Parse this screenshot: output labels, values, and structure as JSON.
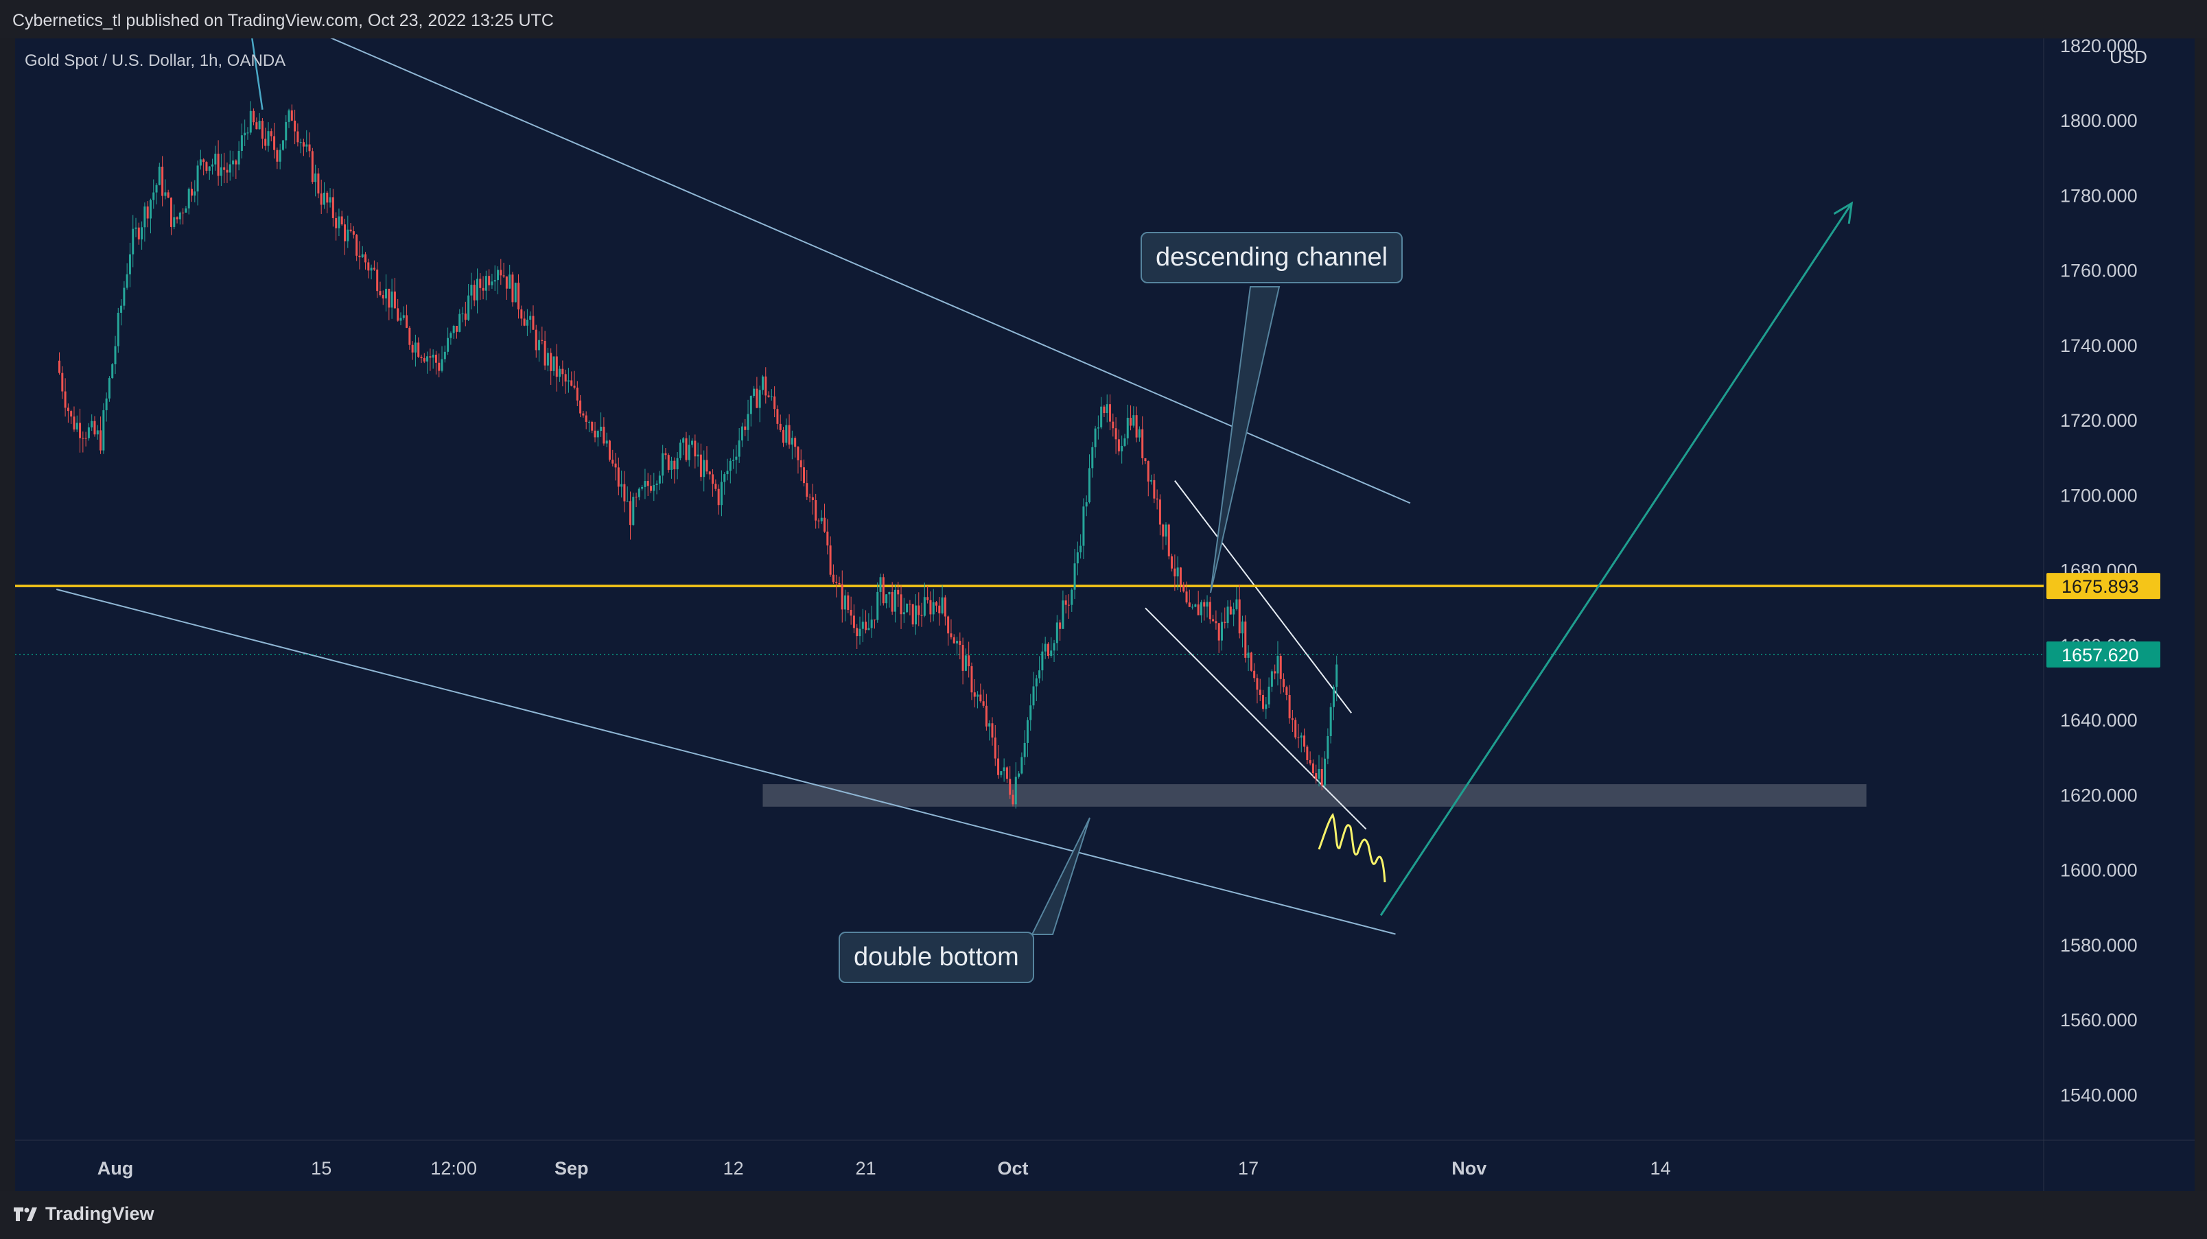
{
  "header": {
    "published": "Cybernetics_tl published on TradingView.com, Oct 23, 2022 13:25 UTC"
  },
  "footer": {
    "brand": "TradingView"
  },
  "chart": {
    "symbol_label": "Gold Spot / U.S. Dollar, 1h, OANDA",
    "currency": "USD",
    "colors": {
      "background": "#0f1a33",
      "up": "#26a69a",
      "down": "#ef5350",
      "horizontal_line": "#f5c518",
      "current_price": "#089981",
      "projection_arrow": "#1f9e8f",
      "channel_lines": "#8fb6d4",
      "support_zone": "#5d6575",
      "scribble": "#f7f26a"
    },
    "annotations": {
      "descending_channel": "descending channel",
      "double_bottom": "double bottom"
    }
  },
  "chart_data": {
    "type": "candlestick",
    "title": "Gold Spot / U.S. Dollar, 1h, OANDA",
    "ylabel": "USD",
    "ylim": [
      1528,
      1822
    ],
    "y_ticks": [
      1820,
      1800,
      1780,
      1760,
      1740,
      1720,
      1700,
      1680,
      1660,
      1640,
      1620,
      1600,
      1580,
      1560,
      1540
    ],
    "y_tick_labels": [
      "1820.000",
      "1800.000",
      "1780.000",
      "1760.000",
      "1740.000",
      "1720.000",
      "1700.000",
      "1680.000",
      "1660.000",
      "1640.000",
      "1620.000",
      "1600.000",
      "1580.000",
      "1560.000",
      "1540.000"
    ],
    "x_ticks": [
      "Aug",
      "15",
      "12:00",
      "Sep",
      "12",
      "21",
      "Oct",
      "17",
      "Nov",
      "14"
    ],
    "x_ticks_bold": [
      "Aug",
      "Sep",
      "Oct",
      "Nov"
    ],
    "price_path": [
      {
        "date": "2022-07-28",
        "price": 1736
      },
      {
        "date": "2022-07-29",
        "price": 1720
      },
      {
        "date": "2022-07-31",
        "price": 1715
      },
      {
        "date": "2022-08-02",
        "price": 1766
      },
      {
        "date": "2022-08-04",
        "price": 1785
      },
      {
        "date": "2022-08-05",
        "price": 1772
      },
      {
        "date": "2022-08-07",
        "price": 1790
      },
      {
        "date": "2022-08-09",
        "price": 1786
      },
      {
        "date": "2022-08-10",
        "price": 1800
      },
      {
        "date": "2022-08-12",
        "price": 1792
      },
      {
        "date": "2022-08-13",
        "price": 1802
      },
      {
        "date": "2022-08-15",
        "price": 1780
      },
      {
        "date": "2022-08-17",
        "price": 1768
      },
      {
        "date": "2022-08-19",
        "price": 1757
      },
      {
        "date": "2022-08-21",
        "price": 1742
      },
      {
        "date": "2022-08-23",
        "price": 1735
      },
      {
        "date": "2022-08-25",
        "price": 1752
      },
      {
        "date": "2022-08-27",
        "price": 1762
      },
      {
        "date": "2022-08-28",
        "price": 1755
      },
      {
        "date": "2022-08-30",
        "price": 1738
      },
      {
        "date": "2022-09-01",
        "price": 1728
      },
      {
        "date": "2022-09-03",
        "price": 1716
      },
      {
        "date": "2022-09-05",
        "price": 1695
      },
      {
        "date": "2022-09-07",
        "price": 1708
      },
      {
        "date": "2022-09-09",
        "price": 1713
      },
      {
        "date": "2022-09-11",
        "price": 1700
      },
      {
        "date": "2022-09-13",
        "price": 1722
      },
      {
        "date": "2022-09-14",
        "price": 1730
      },
      {
        "date": "2022-09-16",
        "price": 1712
      },
      {
        "date": "2022-09-18",
        "price": 1693
      },
      {
        "date": "2022-09-19",
        "price": 1675
      },
      {
        "date": "2022-09-21",
        "price": 1662
      },
      {
        "date": "2022-09-22",
        "price": 1675
      },
      {
        "date": "2022-09-24",
        "price": 1668
      },
      {
        "date": "2022-09-26",
        "price": 1672
      },
      {
        "date": "2022-09-27",
        "price": 1662
      },
      {
        "date": "2022-09-29",
        "price": 1642
      },
      {
        "date": "2022-09-30",
        "price": 1628
      },
      {
        "date": "2022-10-01",
        "price": 1621
      },
      {
        "date": "2022-10-02",
        "price": 1640
      },
      {
        "date": "2022-10-03",
        "price": 1657
      },
      {
        "date": "2022-10-04",
        "price": 1665
      },
      {
        "date": "2022-10-05",
        "price": 1675
      },
      {
        "date": "2022-10-06",
        "price": 1700
      },
      {
        "date": "2022-10-07",
        "price": 1727
      },
      {
        "date": "2022-10-08",
        "price": 1712
      },
      {
        "date": "2022-10-09",
        "price": 1722
      },
      {
        "date": "2022-10-10",
        "price": 1710
      },
      {
        "date": "2022-10-12",
        "price": 1680
      },
      {
        "date": "2022-10-13",
        "price": 1667
      },
      {
        "date": "2022-10-14",
        "price": 1672
      },
      {
        "date": "2022-10-15",
        "price": 1663
      },
      {
        "date": "2022-10-16",
        "price": 1673
      },
      {
        "date": "2022-10-17",
        "price": 1657
      },
      {
        "date": "2022-10-18",
        "price": 1645
      },
      {
        "date": "2022-10-19",
        "price": 1655
      },
      {
        "date": "2022-10-20",
        "price": 1640
      },
      {
        "date": "2022-10-21",
        "price": 1630
      },
      {
        "date": "2022-10-22",
        "price": 1622
      },
      {
        "date": "2022-10-23",
        "price": 1657.62
      }
    ],
    "horizontal_line": {
      "price": 1675.893,
      "label": "1675.893"
    },
    "current_price": {
      "price": 1657.62,
      "label": "1657.620"
    },
    "support_zone": {
      "price_top": 1623,
      "price_bottom": 1617,
      "start": "2022-09-14",
      "end": "2022-11-28"
    },
    "channel_upper": [
      {
        "date": "2022-07-29",
        "price": 1852
      },
      {
        "date": "2022-10-28",
        "price": 1698
      }
    ],
    "channel_lower": [
      {
        "date": "2022-07-28",
        "price": 1675
      },
      {
        "date": "2022-10-27",
        "price": 1583
      }
    ],
    "marker_line": [
      {
        "date": "2022-08-10",
        "price": 1830
      },
      {
        "date": "2022-08-11",
        "price": 1803
      }
    ],
    "small_channel_upper": [
      {
        "date": "2022-10-12",
        "price": 1704
      },
      {
        "date": "2022-10-24",
        "price": 1642
      }
    ],
    "small_channel_lower": [
      {
        "date": "2022-10-10",
        "price": 1670
      },
      {
        "date": "2022-10-25",
        "price": 1611
      }
    ],
    "projection_arrow": [
      {
        "date": "2022-10-26",
        "price": 1588
      },
      {
        "date": "2022-11-27",
        "price": 1778
      }
    ]
  }
}
